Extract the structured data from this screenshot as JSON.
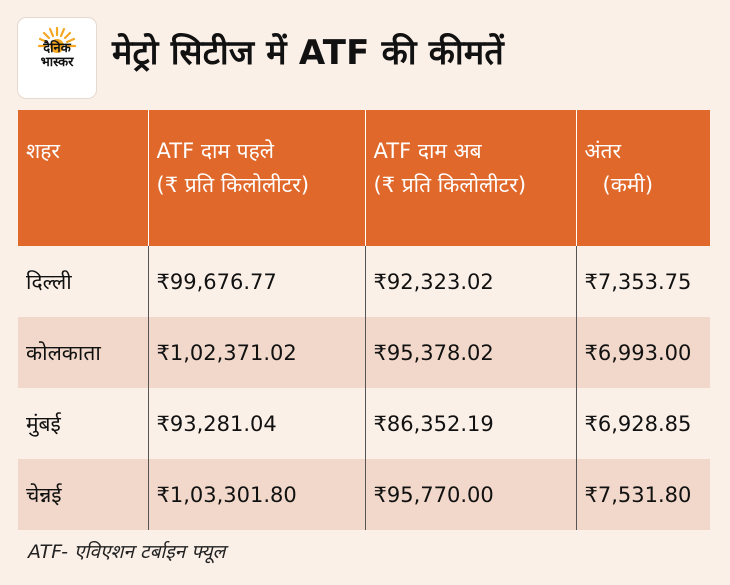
{
  "logo": {
    "line1": "दैनिक",
    "line2": "भास्कर"
  },
  "title": "मेट्रो सिटीज में ATF की कीमतें",
  "chart_data": {
    "type": "table",
    "headers": [
      {
        "line1": "शहर",
        "line2": ""
      },
      {
        "line1": "ATF दाम पहले",
        "line2": "(₹ प्रति किलोलीटर)"
      },
      {
        "line1": "ATF दाम अब",
        "line2": "(₹ प्रति किलोलीटर)"
      },
      {
        "line1": "अंतर",
        "line2": "(कमी)"
      }
    ],
    "rows": [
      [
        "दिल्ली",
        "₹99,676.77",
        "₹92,323.02",
        "₹7,353.75"
      ],
      [
        "कोलकाता",
        "₹1,02,371.02",
        "₹95,378.02",
        "₹6,993.00"
      ],
      [
        "मुंबई",
        "₹93,281.04",
        "₹86,352.19",
        "₹6,928.85"
      ],
      [
        "चेन्नई",
        "₹1,03,301.80",
        "₹95,770.00",
        "₹7,531.80"
      ]
    ]
  },
  "footnote": "ATF- एविएशन टर्बाइन फ्यूल",
  "colors": {
    "header_bg": "#e0682b",
    "page_bg": "#fbf0e8",
    "alt_row_bg": "#f1d8ca",
    "logo_sun": "#f5a623"
  }
}
